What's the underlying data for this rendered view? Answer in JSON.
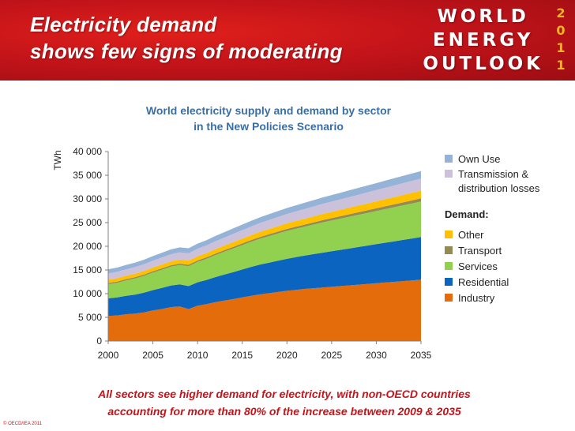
{
  "header": {
    "title_line1": "Electricity demand",
    "title_line2": "shows few signs of moderating",
    "logo_line1": "WORLD",
    "logo_line2": "ENERGY",
    "logo_line3": "OUTLOOK",
    "logo_year_digits": [
      "2",
      "0",
      "1",
      "1"
    ]
  },
  "chart_data": {
    "type": "area",
    "stacked": true,
    "title_line1": "World electricity supply and demand by sector",
    "title_line2": "in the New Policies Scenario",
    "ylabel": "TWh",
    "xlabel": "",
    "ylim": [
      0,
      40000
    ],
    "xlim": [
      2000,
      2035
    ],
    "y_ticks": [
      0,
      5000,
      10000,
      15000,
      20000,
      25000,
      30000,
      35000,
      40000
    ],
    "y_tick_labels": [
      "0",
      "5 000",
      "10 000",
      "15 000",
      "20 000",
      "25 000",
      "30 000",
      "35 000",
      "40 000"
    ],
    "x_ticks": [
      2000,
      2005,
      2010,
      2015,
      2020,
      2025,
      2030,
      2035
    ],
    "x_tick_labels": [
      "2000",
      "2005",
      "2010",
      "2015",
      "2020",
      "2025",
      "2030",
      "2035"
    ],
    "grid": false,
    "legend_position": "right",
    "legend_heading": "Demand:",
    "x": [
      2000,
      2001,
      2002,
      2003,
      2004,
      2005,
      2006,
      2007,
      2008,
      2009,
      2010,
      2011,
      2012,
      2013,
      2014,
      2015,
      2016,
      2017,
      2018,
      2019,
      2020,
      2021,
      2022,
      2023,
      2024,
      2025,
      2026,
      2027,
      2028,
      2029,
      2030,
      2031,
      2032,
      2033,
      2034,
      2035
    ],
    "series": [
      {
        "name": "Industry",
        "color": "#e46c0a",
        "values": [
          5300,
          5400,
          5650,
          5800,
          6050,
          6450,
          6750,
          7150,
          7300,
          6750,
          7450,
          7800,
          8200,
          8550,
          8850,
          9200,
          9550,
          9850,
          10100,
          10350,
          10600,
          10800,
          11000,
          11150,
          11300,
          11450,
          11600,
          11750,
          11900,
          12050,
          12200,
          12350,
          12500,
          12650,
          12800,
          12950
        ]
      },
      {
        "name": "Residential",
        "color": "#0b64c0",
        "values": [
          3700,
          3800,
          3900,
          4000,
          4150,
          4300,
          4450,
          4550,
          4650,
          4850,
          4950,
          5100,
          5300,
          5500,
          5700,
          5900,
          6100,
          6300,
          6450,
          6600,
          6750,
          6900,
          7050,
          7200,
          7350,
          7500,
          7650,
          7800,
          7950,
          8100,
          8250,
          8400,
          8550,
          8700,
          8850,
          9000
        ]
      },
      {
        "name": "Services",
        "color": "#92d050",
        "values": [
          3000,
          3100,
          3250,
          3400,
          3550,
          3700,
          3850,
          4000,
          4100,
          4200,
          4300,
          4450,
          4650,
          4800,
          5000,
          5150,
          5300,
          5450,
          5600,
          5750,
          5900,
          6000,
          6100,
          6250,
          6400,
          6500,
          6600,
          6700,
          6800,
          6900,
          7000,
          7100,
          7200,
          7300,
          7400,
          7500
        ]
      },
      {
        "name": "Transport",
        "color": "#948a54",
        "values": [
          250,
          255,
          260,
          265,
          270,
          275,
          280,
          285,
          290,
          295,
          300,
          310,
          320,
          330,
          340,
          350,
          360,
          370,
          380,
          395,
          410,
          425,
          440,
          455,
          470,
          485,
          500,
          515,
          530,
          545,
          560,
          580,
          600,
          620,
          640,
          660
        ]
      },
      {
        "name": "Other",
        "color": "#ffc000",
        "values": [
          700,
          720,
          740,
          760,
          780,
          800,
          820,
          840,
          860,
          880,
          900,
          920,
          950,
          980,
          1010,
          1040,
          1070,
          1100,
          1130,
          1160,
          1190,
          1220,
          1250,
          1280,
          1310,
          1340,
          1370,
          1400,
          1430,
          1460,
          1490,
          1520,
          1550,
          1580,
          1610,
          1640
        ]
      },
      {
        "name": "Transmission & distribution losses",
        "color": "#ccc1da",
        "values": [
          1300,
          1320,
          1340,
          1370,
          1400,
          1430,
          1460,
          1490,
          1520,
          1550,
          1580,
          1610,
          1640,
          1680,
          1720,
          1760,
          1800,
          1840,
          1880,
          1920,
          1960,
          2000,
          2040,
          2080,
          2120,
          2160,
          2200,
          2240,
          2280,
          2320,
          2360,
          2400,
          2440,
          2480,
          2520,
          2560
        ]
      },
      {
        "name": "Own Use",
        "color": "#95b3d7",
        "values": [
          900,
          910,
          920,
          940,
          960,
          980,
          1000,
          1020,
          1040,
          1060,
          1080,
          1100,
          1120,
          1140,
          1160,
          1180,
          1200,
          1220,
          1240,
          1260,
          1280,
          1300,
          1320,
          1340,
          1360,
          1380,
          1400,
          1420,
          1440,
          1460,
          1480,
          1500,
          1520,
          1540,
          1560,
          1580
        ]
      }
    ]
  },
  "legend": {
    "own_use": "Own Use",
    "tnd_line1": "Transmission &",
    "tnd_line2": "distribution losses",
    "demand_heading": "Demand:",
    "other": "Other",
    "transport": "Transport",
    "services": "Services",
    "residential": "Residential",
    "industry": "Industry"
  },
  "footer": {
    "line1": "All sectors see higher demand for electricity, with non-OECD countries",
    "line2": "accounting for more than 80% of the increase between 2009 & 2035"
  },
  "copyright": "© OECD/IEA 2011"
}
